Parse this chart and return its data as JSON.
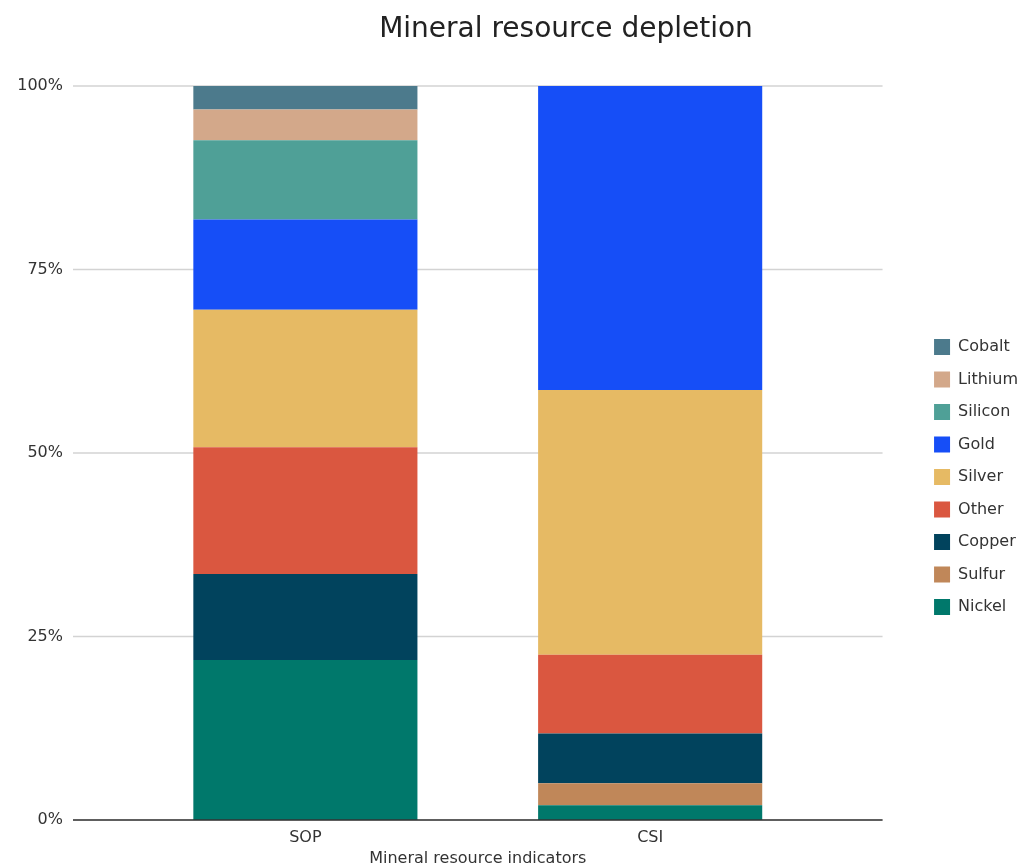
{
  "chart_data": {
    "type": "bar",
    "title": "Mineral resource depletion",
    "xlabel": "Mineral resource indicators",
    "categories": [
      "SOP",
      "CSI"
    ],
    "stacked": true,
    "series": [
      {
        "name": "Nickel",
        "color": "#00786b",
        "values": [
          21.8,
          2.0
        ]
      },
      {
        "name": "Sulfur",
        "color": "#c08759",
        "values": [
          0,
          3.0
        ]
      },
      {
        "name": "Copper",
        "color": "#01435d",
        "values": [
          11.7,
          6.8
        ]
      },
      {
        "name": "Other",
        "color": "#da5740",
        "values": [
          17.3,
          10.7
        ]
      },
      {
        "name": "Silver",
        "color": "#e6ba64",
        "values": [
          18.7,
          36.1
        ]
      },
      {
        "name": "Gold",
        "color": "#164ef7",
        "values": [
          12.3,
          41.4
        ]
      },
      {
        "name": "Silicon",
        "color": "#4fa097",
        "values": [
          10.8,
          0
        ]
      },
      {
        "name": "Lithium",
        "color": "#d3a88a",
        "values": [
          4.2,
          0
        ]
      },
      {
        "name": "Cobalt",
        "color": "#4c7a8c",
        "values": [
          3.2,
          0
        ]
      }
    ],
    "ylim": [
      0,
      100
    ],
    "yticks": [
      {
        "value": 0,
        "label": "0%"
      },
      {
        "value": 25,
        "label": "25%"
      },
      {
        "value": 50,
        "label": "50%"
      },
      {
        "value": 75,
        "label": "75%"
      },
      {
        "value": 100,
        "label": "100%"
      }
    ],
    "grid": "y",
    "legend": "right"
  }
}
